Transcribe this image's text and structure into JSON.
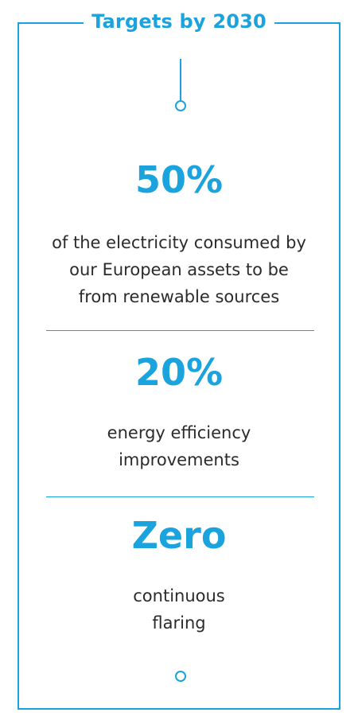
{
  "title": "Targets by 2030",
  "targets": [
    {
      "value": "50%",
      "description_lines": [
        "of the electricity consumed by",
        "our European assets to be",
        "from renewable sources"
      ]
    },
    {
      "value": "20%",
      "description_lines": [
        "energy efficiency",
        "improvements"
      ]
    },
    {
      "value": "Zero",
      "description_lines": [
        "continuous",
        "flaring"
      ]
    }
  ],
  "colors": {
    "accent": "#1aa3dc",
    "text": "#2b2b2b",
    "background": "#ffffff"
  }
}
